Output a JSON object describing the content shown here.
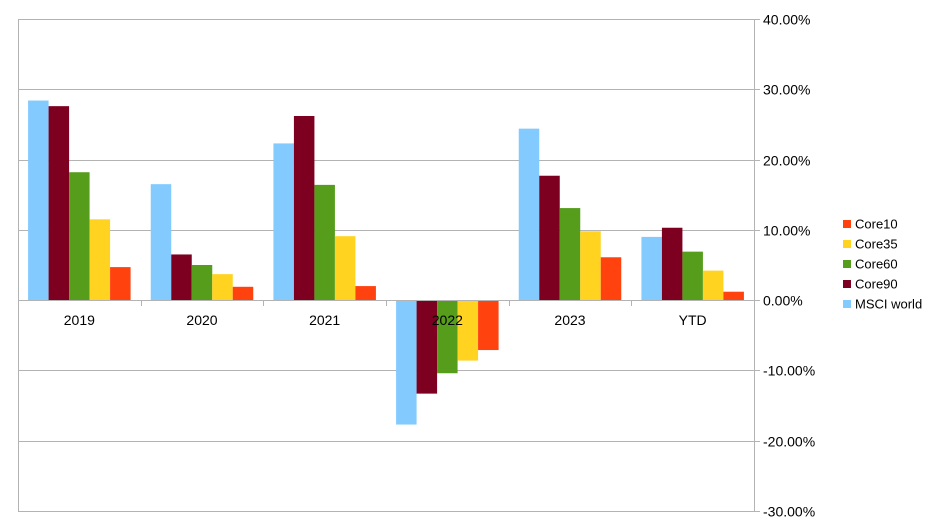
{
  "chart_data": {
    "type": "bar",
    "categories": [
      "2019",
      "2020",
      "2021",
      "2022",
      "2023",
      "YTD"
    ],
    "series": [
      {
        "name": "MSCI world",
        "color": "#83caff",
        "values": [
          28.4,
          16.5,
          22.3,
          -17.7,
          24.4,
          9.0
        ]
      },
      {
        "name": "Core90",
        "color": "#7e0021",
        "values": [
          27.6,
          6.5,
          26.2,
          -13.3,
          17.7,
          10.3
        ]
      },
      {
        "name": "Core60",
        "color": "#579d1c",
        "values": [
          18.2,
          5.0,
          16.4,
          -10.4,
          13.1,
          6.9
        ]
      },
      {
        "name": "Core35",
        "color": "#ffd320",
        "values": [
          11.5,
          3.7,
          9.1,
          -8.6,
          9.8,
          4.2
        ]
      },
      {
        "name": "Core10",
        "color": "#ff420e",
        "values": [
          4.7,
          1.9,
          2.0,
          -7.1,
          6.1,
          1.2
        ]
      }
    ],
    "legend_order": [
      "Core10",
      "Core35",
      "Core60",
      "Core90",
      "MSCI world"
    ],
    "ylim": [
      -30,
      40
    ],
    "y_ticks": [
      40,
      30,
      20,
      10,
      0,
      -10,
      -20,
      -30
    ],
    "y_tick_labels": [
      "40.00%",
      "30.00%",
      "20.00%",
      "10.00%",
      "0.00%",
      "-10.00%",
      "-20.00%",
      "-30.00%"
    ],
    "y_axis_position": "right",
    "grid": true,
    "legend_position": "right",
    "title": "",
    "xlabel": "",
    "ylabel": ""
  }
}
